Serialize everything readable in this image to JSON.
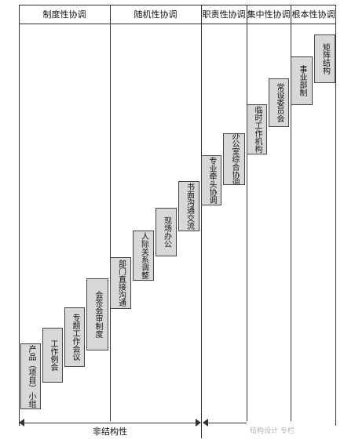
{
  "headers": {
    "institutional": "制度性协调",
    "random": "随机性协调",
    "functional": "职责性协调",
    "centralized": "集中性协调",
    "fundamental": "根本性协调"
  },
  "steps": [
    "产品（项目）小组",
    "工作例会",
    "专题工作会议",
    "会签会审制度",
    "部门直接沟通",
    "人际关系调整",
    "现场办公",
    "书面沟通交流",
    "专业牵头协调",
    "办公室综合协调",
    "临时工作机构",
    "常设委员会",
    "事业部制",
    "矩阵结构"
  ],
  "bottom": {
    "nonstructural": "非结构性"
  },
  "watermark": "结构设计 专栏"
}
